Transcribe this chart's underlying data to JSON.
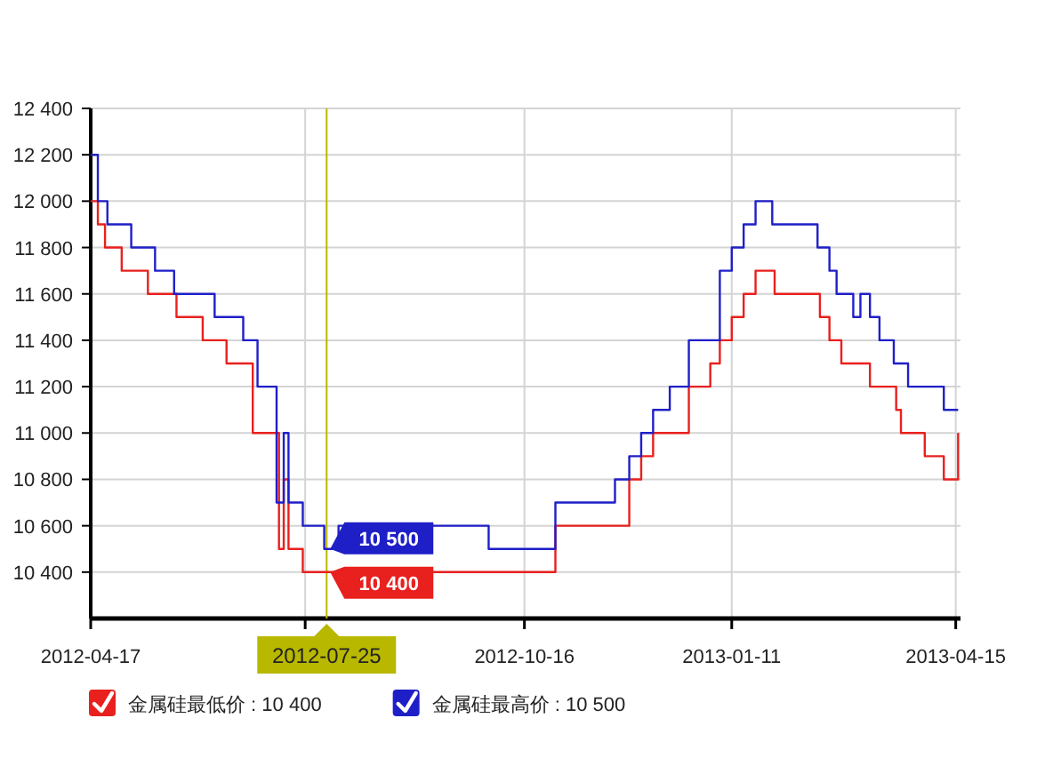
{
  "chart_data": {
    "type": "step",
    "xlim": [
      "2012-04-17",
      "2013-04-17"
    ],
    "ylim": [
      10200,
      12400
    ],
    "xticks": [
      "2012-04-17",
      {
        "value": "2012-07-16",
        "label": null
      },
      "2012-10-16",
      "2013-01-11",
      "2013-04-15"
    ],
    "yticks": [
      {
        "value": 10400,
        "label": "10 400"
      },
      {
        "value": 10600,
        "label": "10 600"
      },
      {
        "value": 10800,
        "label": "10 800"
      },
      {
        "value": 11000,
        "label": "11 000"
      },
      {
        "value": 11200,
        "label": "11 200"
      },
      {
        "value": 11400,
        "label": "11 400"
      },
      {
        "value": 11600,
        "label": "11 600"
      },
      {
        "value": 11800,
        "label": "11 800"
      },
      {
        "value": 12000,
        "label": "12 000"
      },
      {
        "value": 12200,
        "label": "12 200"
      },
      {
        "value": 12400,
        "label": "12 400"
      }
    ],
    "grid": true,
    "legend": "bottom",
    "series": [
      {
        "name": "金属硅最低价 : 10 400",
        "color": "#e8201e",
        "x": [
          "2012-04-17",
          "2012-04-20",
          "2012-04-23",
          "2012-04-30",
          "2012-05-11",
          "2012-05-23",
          "2012-06-03",
          "2012-06-13",
          "2012-06-24",
          "2012-07-05",
          "2012-07-07",
          "2012-07-09",
          "2012-07-15",
          "2012-10-29",
          "2012-11-29",
          "2012-12-04",
          "2012-12-09",
          "2012-12-24",
          "2013-01-02",
          "2013-01-06",
          "2013-01-11",
          "2013-01-16",
          "2013-01-21",
          "2013-01-29",
          "2013-02-17",
          "2013-02-21",
          "2013-02-26",
          "2013-03-10",
          "2013-03-21",
          "2013-03-23",
          "2013-04-02",
          "2013-04-10",
          "2013-04-16"
        ],
        "values": [
          12000,
          11900,
          11800,
          11700,
          11600,
          11500,
          11400,
          11300,
          11000,
          10500,
          10800,
          10500,
          10400,
          10600,
          10800,
          10900,
          11000,
          11200,
          11300,
          11400,
          11500,
          11600,
          11700,
          11600,
          11500,
          11400,
          11300,
          11200,
          11100,
          11000,
          10900,
          10800,
          11000
        ]
      },
      {
        "name": "金属硅最高价 : 10 500",
        "color": "#1f1fc8",
        "x": [
          "2012-04-17",
          "2012-04-20",
          "2012-04-24",
          "2012-05-04",
          "2012-05-14",
          "2012-05-22",
          "2012-06-08",
          "2012-06-20",
          "2012-06-26",
          "2012-07-04",
          "2012-07-07",
          "2012-07-09",
          "2012-07-15",
          "2012-07-24",
          "2012-07-30",
          "2012-10-01",
          "2012-10-29",
          "2012-11-23",
          "2012-11-29",
          "2012-12-04",
          "2012-12-09",
          "2012-12-16",
          "2012-12-24",
          "2013-01-06",
          "2013-01-11",
          "2013-01-16",
          "2013-01-21",
          "2013-01-28",
          "2013-02-16",
          "2013-02-21",
          "2013-02-24",
          "2013-03-03",
          "2013-03-06",
          "2013-03-10",
          "2013-03-14",
          "2013-03-20",
          "2013-03-26",
          "2013-04-10",
          "2013-04-16"
        ],
        "values": [
          12200,
          12000,
          11900,
          11800,
          11700,
          11600,
          11500,
          11400,
          11200,
          10700,
          11000,
          10700,
          10600,
          10500,
          10600,
          10500,
          10700,
          10800,
          10900,
          11000,
          11100,
          11200,
          11400,
          11700,
          11800,
          11900,
          12000,
          11900,
          11800,
          11700,
          11600,
          11500,
          11600,
          11500,
          11400,
          11300,
          11200,
          11100,
          11100
        ]
      }
    ],
    "ref_lines": [
      {
        "axis": "x",
        "value": "2012-07-25",
        "label": "2012-07-25",
        "color": "#b8b800"
      }
    ],
    "annotations": [
      {
        "text": "10 500",
        "x": "2012-07-25",
        "y": 10500
      },
      {
        "text": "10 400",
        "x": "2012-07-25",
        "y": 10400
      }
    ]
  }
}
